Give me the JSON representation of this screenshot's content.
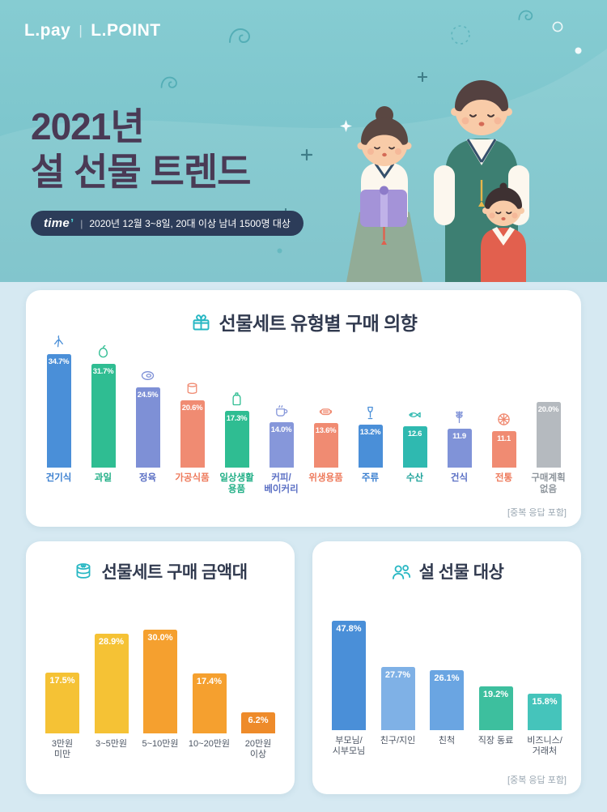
{
  "header": {
    "logo": {
      "lpay": "L.pay",
      "divider": "|",
      "lpoint": "L.POINT"
    },
    "title_line1": "2021년",
    "title_line2": "설 선물 트렌드",
    "badge": {
      "brand": "time",
      "brand_mark": "’",
      "divider": "|",
      "text": "2020년 12월 3~8일, 20대 이상 남녀 1500명 대상"
    },
    "decorative_icons": [
      "cloud-swirl-icon",
      "sparkle-plus-icon",
      "dotted-circle-icon",
      "sparkle-diamond-icon",
      "circle-dot-icon",
      "family-illustration"
    ]
  },
  "colors": {
    "header_bg": "#7cc5cc",
    "page_bg": "#d6e9f2",
    "badge_bg": "#2c3c59",
    "header_title": "#4a3a55",
    "card_bg": "#ffffff",
    "card_title": "#313a4f",
    "title_icon": "#27b7c3",
    "note": "#9aa7b2"
  },
  "chart_data": [
    {
      "type": "bar",
      "title": "선물세트 유형별 구매 의향",
      "title_icon": "gift-icon",
      "note": "[중복 응답 포함]",
      "categories": [
        "건기식",
        "과일",
        "정육",
        "가공식품",
        "일상생활\n용품",
        "커피/\n베이커리",
        "위생용품",
        "주류",
        "수산",
        "건식",
        "전통",
        "구매계획\n없음"
      ],
      "values": [
        34.7,
        31.7,
        24.5,
        20.6,
        17.3,
        14.0,
        13.6,
        13.2,
        12.6,
        11.9,
        11.1,
        20.0
      ],
      "value_labels": [
        "34.7%",
        "31.7%",
        "24.5%",
        "20.6%",
        "17.3%",
        "14.0%",
        "13.6%",
        "13.2%",
        "12.6",
        "11.9",
        "11.1",
        "20.0%"
      ],
      "bar_colors": [
        "#4a8fd8",
        "#2fbd92",
        "#7e90d6",
        "#f08b72",
        "#2fbd92",
        "#8697da",
        "#f08b72",
        "#4a8fd8",
        "#2fb9b0",
        "#8093d8",
        "#f08b72",
        "#b5babf"
      ],
      "label_colors": [
        "#3a7fd0",
        "#1fae85",
        "#5a6fc4",
        "#ee7a5c",
        "#1fae85",
        "#5a6fc4",
        "#ee7a5c",
        "#3a7fd0",
        "#1fa39b",
        "#5a6fc4",
        "#ee7a5c",
        "#8e959c"
      ],
      "icons": [
        "ginseng-icon",
        "pear-icon",
        "meat-icon",
        "canned-food-icon",
        "lotion-bottle-icon",
        "coffee-cup-icon",
        "mask-icon",
        "wine-glass-icon",
        "fish-icon",
        "grain-icon",
        "traditional-sweet-icon",
        null
      ],
      "xlabel": "",
      "ylabel": "",
      "ylim": [
        0,
        35
      ],
      "grid": false,
      "legend": false
    },
    {
      "type": "bar",
      "title": "선물세트 구매 금액대",
      "title_icon": "won-coins-icon",
      "categories": [
        "3만원\n미만",
        "3~5만원",
        "5~10만원",
        "10~20만원",
        "20만원\n이상"
      ],
      "values": [
        17.5,
        28.9,
        30.0,
        17.4,
        6.2
      ],
      "value_labels": [
        "17.5%",
        "28.9%",
        "30.0%",
        "17.4%",
        "6.2%"
      ],
      "bar_colors": [
        "#f5c235",
        "#f5c235",
        "#f5a02f",
        "#f5a02f",
        "#ee8b2a"
      ],
      "xlabel": "",
      "ylabel": "",
      "ylim": [
        0,
        32
      ],
      "grid": false,
      "legend": false
    },
    {
      "type": "bar",
      "title": "설 선물 대상",
      "title_icon": "people-group-icon",
      "note": "[중복 응답 포함]",
      "categories": [
        "부모님/\n시부모님",
        "친구/지인",
        "친척",
        "직장 동료",
        "비즈니스/\n거래처"
      ],
      "values": [
        47.8,
        27.7,
        26.1,
        19.2,
        15.8
      ],
      "value_labels": [
        "47.8%",
        "27.7%",
        "26.1%",
        "19.2%",
        "15.8%"
      ],
      "bar_colors": [
        "#4a8fd8",
        "#7fb1e6",
        "#6aa5e2",
        "#3dbf9e",
        "#45c4bb"
      ],
      "xlabel": "",
      "ylabel": "",
      "ylim": [
        0,
        50
      ],
      "grid": false,
      "legend": false
    }
  ]
}
